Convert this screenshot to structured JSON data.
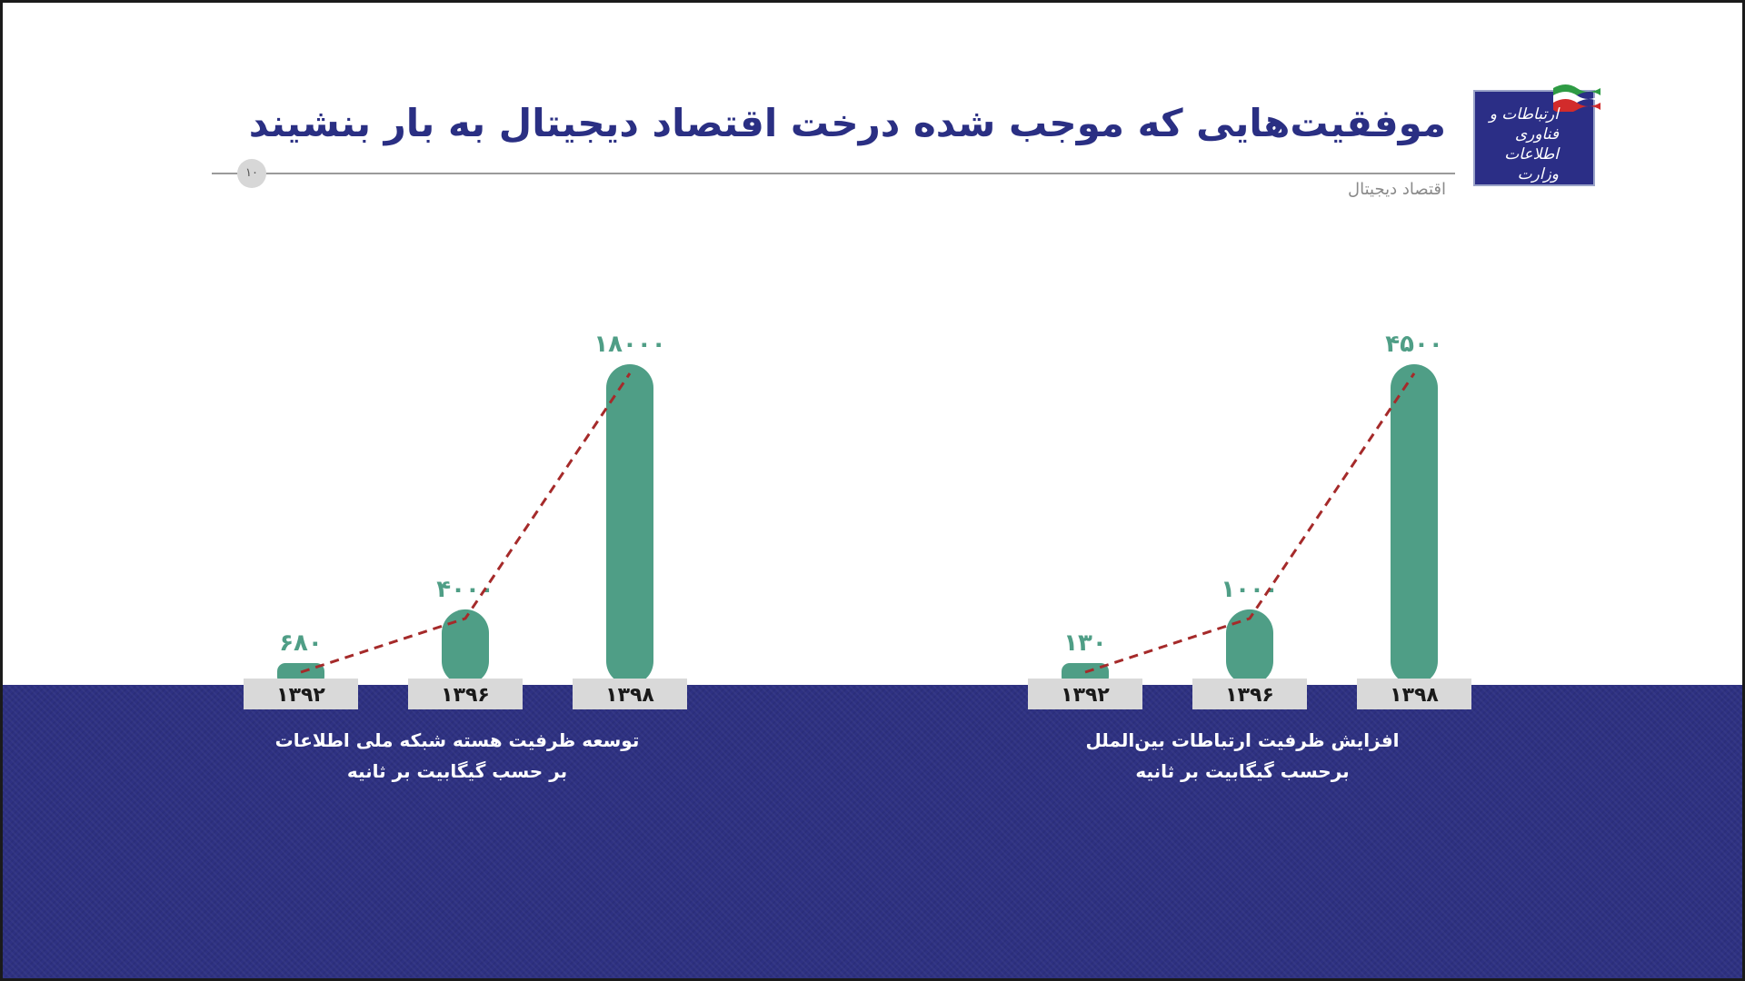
{
  "header": {
    "title": "موفقیت‌هایی که موجب شده درخت اقتصاد دیجیتال به بار بنشیند",
    "subtitle": "اقتصاد دیجیتال",
    "page_number": "۱۰",
    "logo_text": "ارتباطات و فناوری اطلاعات وزارت"
  },
  "colors": {
    "bar": "#4f9e86",
    "label_box": "#d9d9d9",
    "trend_line": "#a52a2a",
    "band": "#2e3182",
    "title": "#2a2f83"
  },
  "chart_data": [
    {
      "type": "bar",
      "categories": [
        "۱۳۹۲",
        "۱۳۹۶",
        "۱۳۹۸"
      ],
      "values": [
        680,
        4000,
        18000
      ],
      "value_labels": [
        "۶۸۰",
        "۴۰۰۰",
        "۱۸۰۰۰"
      ],
      "caption": [
        "توسعه ظرفیت هسته شبکه ملی اطلاعات",
        "بر حسب گیگابیت بر ثانیه"
      ],
      "trend_line": true
    },
    {
      "type": "bar",
      "categories": [
        "۱۳۹۲",
        "۱۳۹۶",
        "۱۳۹۸"
      ],
      "values": [
        130,
        1000,
        4500
      ],
      "value_labels": [
        "۱۳۰",
        "۱۰۰۰",
        "۴۵۰۰"
      ],
      "caption": [
        "افزایش ظرفیت ارتباطات بین‌الملل",
        "برحسب گیگابیت بر ثانیه"
      ],
      "trend_line": true
    }
  ]
}
